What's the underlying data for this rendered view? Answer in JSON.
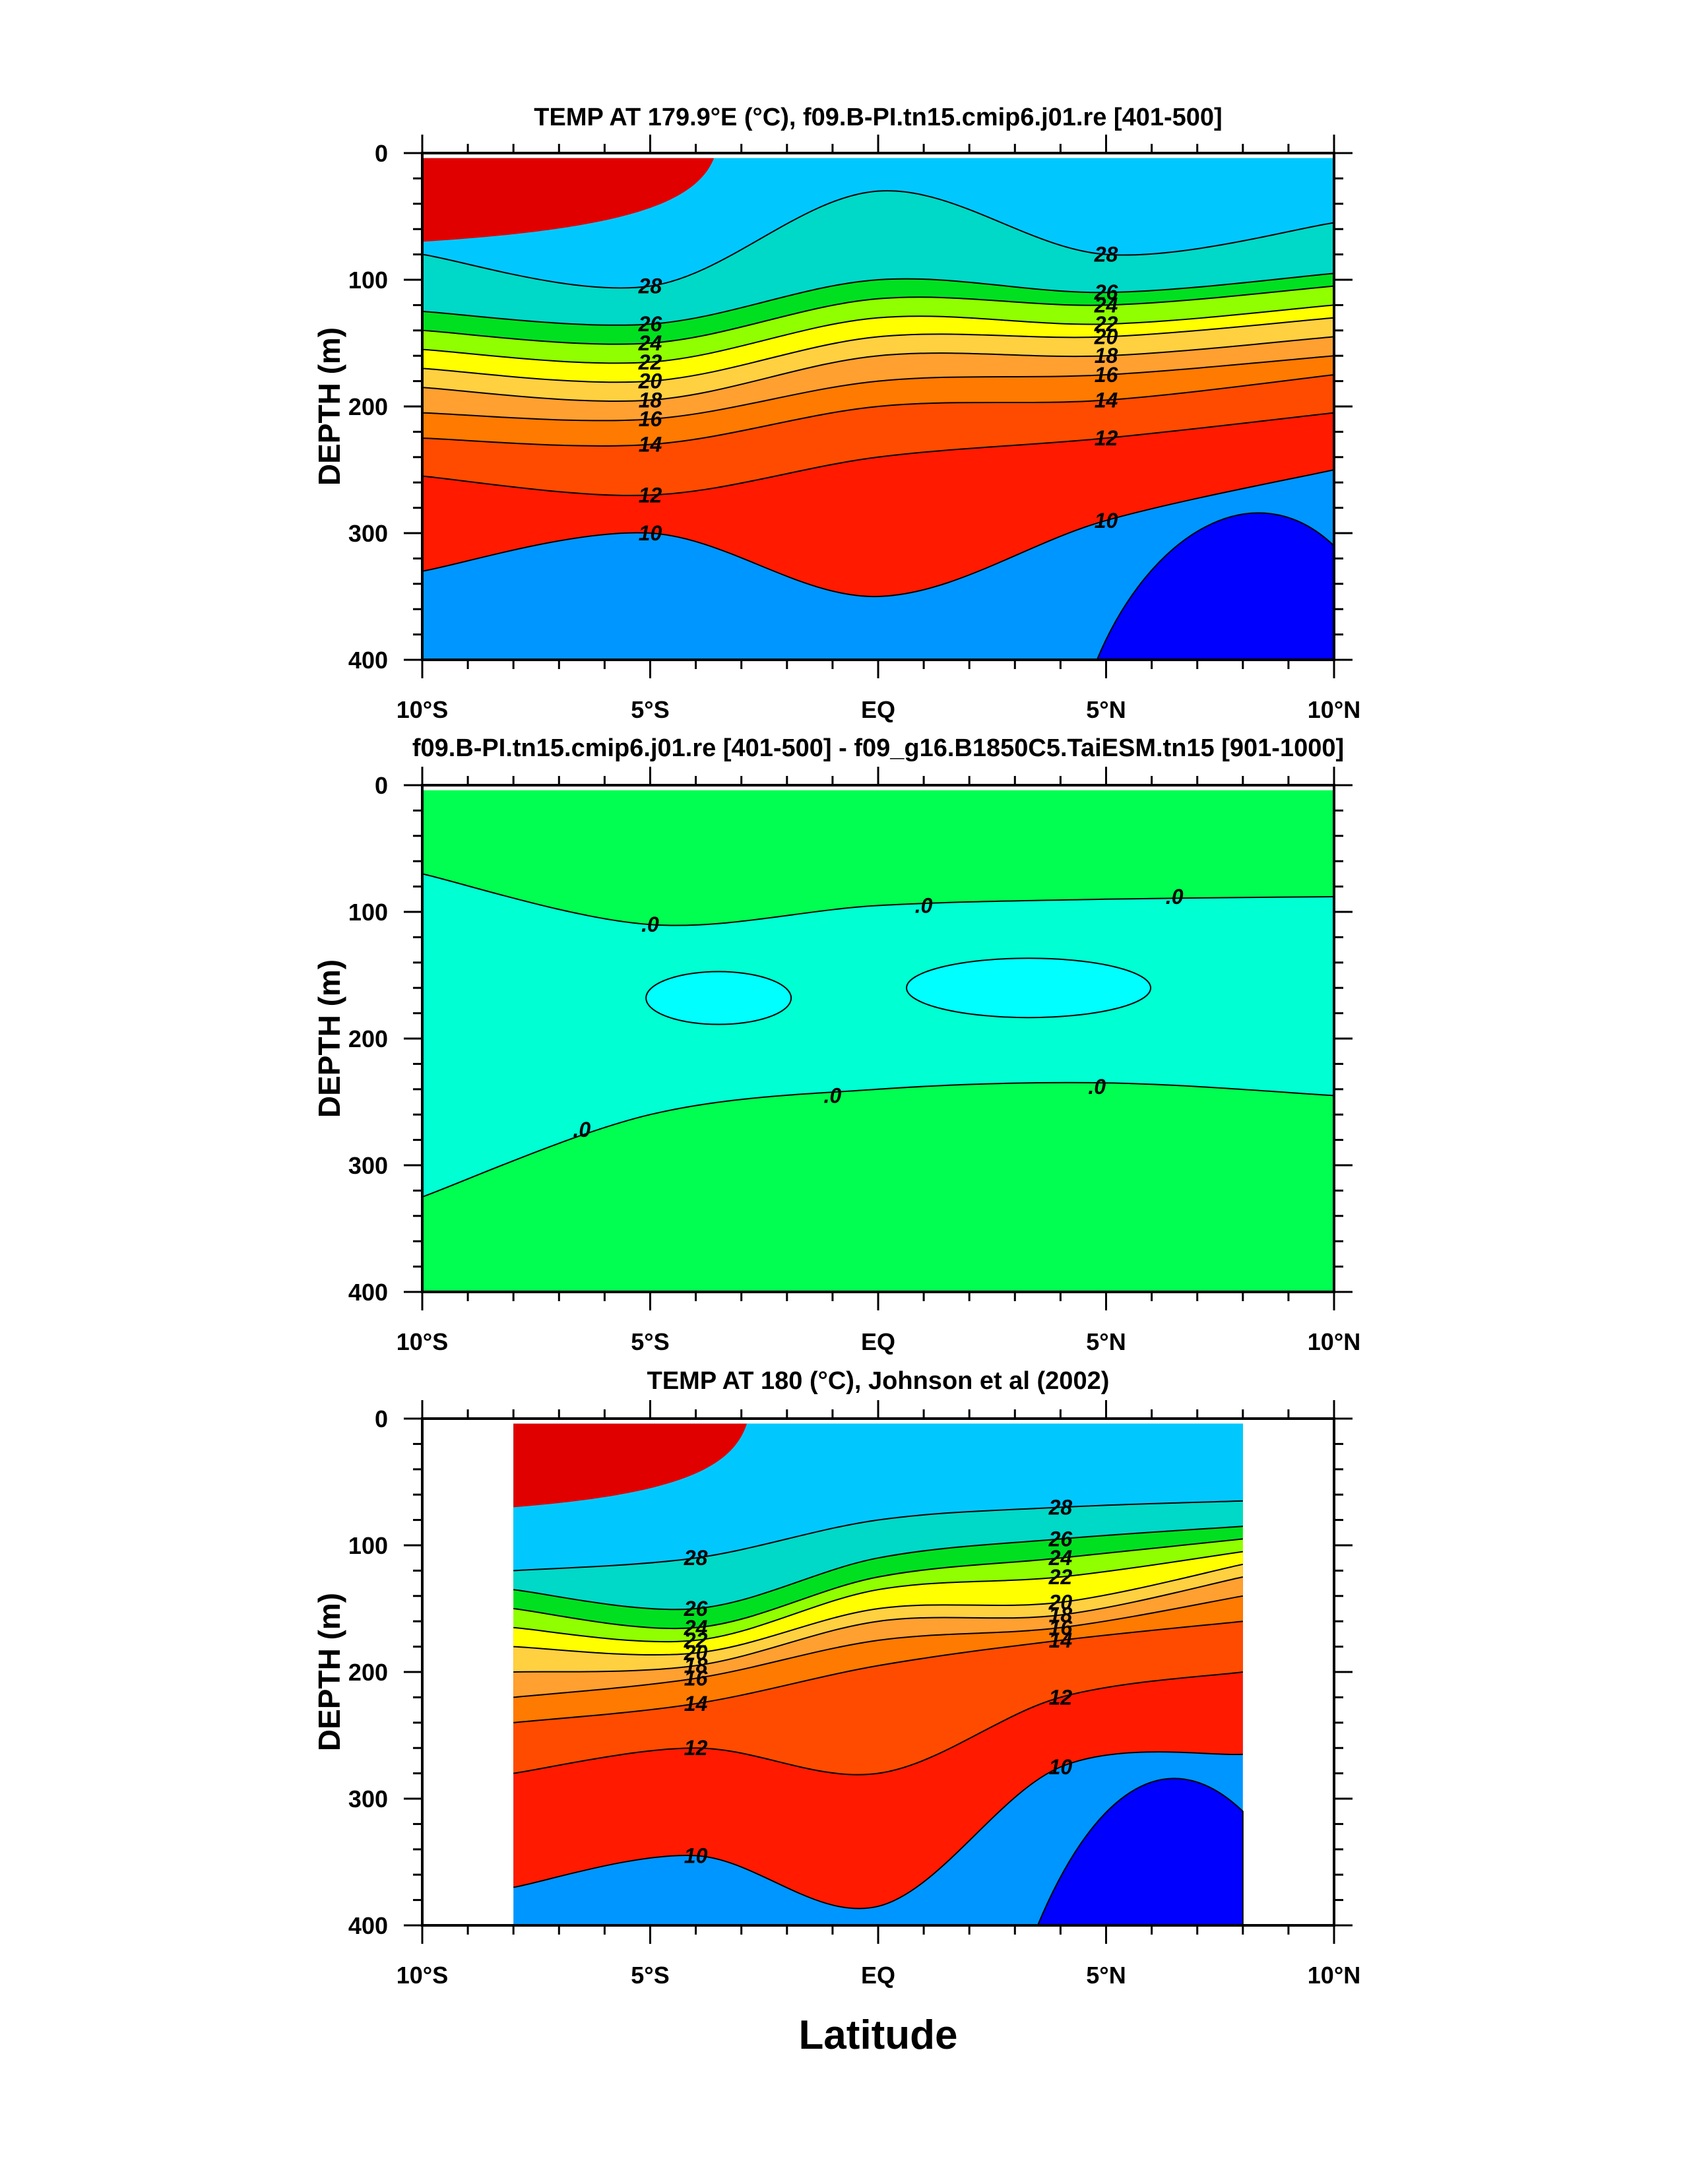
{
  "colors": {
    "c_ge28": "#e10000",
    "c_26_28": "#ff1a00",
    "c_24_26": "#ff4b00",
    "c_22_24": "#ff7a00",
    "c_20_22": "#ffa030",
    "c_18_20": "#ffd040",
    "c_16_18": "#ffff00",
    "c_14_16": "#90ff00",
    "c_12_14": "#00e020",
    "c_10_12": "#00d8c8",
    "c_8_10": "#00c8ff",
    "c_6_8": "#0096ff",
    "c_le6": "#0050ff",
    "c_deep": "#0000ff",
    "diff_zero": "#00ff50",
    "diff_neg": "#00ffd2",
    "diff_neg2": "#00ffff"
  },
  "x_axis": {
    "label": "Latitude",
    "ticks": [
      "10°S",
      "5°S",
      "EQ",
      "5°N",
      "10°N"
    ]
  },
  "chart_data": [
    {
      "type": "heatmap",
      "title": "TEMP AT 179.9°E (°C), f09.B-PI.tn15.cmip6.j01.re [401-500]",
      "xlabel": "",
      "ylabel": "DEPTH (m)",
      "xlim": [
        -10,
        10
      ],
      "ylim": [
        400,
        0
      ],
      "yticks": [
        "0",
        "100",
        "200",
        "300",
        "400"
      ],
      "x": [
        -10,
        -5,
        0,
        5,
        10
      ],
      "contour_levels": [
        10,
        12,
        14,
        16,
        18,
        20,
        22,
        24,
        26,
        28
      ],
      "contour_depths": [
        {
          "level": 28,
          "depth": [
            80,
            105,
            30,
            80,
            55
          ]
        },
        {
          "level": 26,
          "depth": [
            125,
            135,
            100,
            110,
            95
          ]
        },
        {
          "level": 24,
          "depth": [
            140,
            150,
            115,
            120,
            105
          ]
        },
        {
          "level": 22,
          "depth": [
            155,
            165,
            130,
            135,
            120
          ]
        },
        {
          "level": 20,
          "depth": [
            170,
            180,
            145,
            145,
            130
          ]
        },
        {
          "level": 18,
          "depth": [
            185,
            195,
            160,
            160,
            145
          ]
        },
        {
          "level": 16,
          "depth": [
            205,
            210,
            180,
            175,
            160
          ]
        },
        {
          "level": 14,
          "depth": [
            225,
            230,
            200,
            195,
            175
          ]
        },
        {
          "level": 12,
          "depth": [
            255,
            270,
            240,
            225,
            205
          ]
        },
        {
          "level": 10,
          "depth": [
            330,
            300,
            350,
            290,
            250
          ]
        }
      ],
      "contour_labels": [
        "28",
        "26",
        "24",
        "22",
        "20",
        "18",
        "16",
        "14",
        "12",
        "10"
      ]
    },
    {
      "type": "heatmap",
      "title": "f09.B-PI.tn15.cmip6.j01.re [401-500] - f09_g16.B1850C5.TaiESM.tn15 [901-1000]",
      "xlabel": "",
      "ylabel": "DEPTH (m)",
      "xlim": [
        -10,
        10
      ],
      "ylim": [
        400,
        0
      ],
      "yticks": [
        "0",
        "100",
        "200",
        "300",
        "400"
      ],
      "contour_levels": [
        0
      ],
      "contour_labels": [
        ".0"
      ],
      "upper_zero_depth": {
        "x": [
          -10,
          -5,
          0,
          5,
          10
        ],
        "depth": [
          70,
          110,
          95,
          90,
          88
        ]
      },
      "lower_zero_depth": {
        "x": [
          -10,
          -5,
          0,
          5,
          10
        ],
        "depth": [
          325,
          260,
          240,
          235,
          245
        ]
      }
    },
    {
      "type": "heatmap",
      "title": "TEMP AT 180 (°C), Johnson et al (2002)",
      "xlabel": "Latitude",
      "ylabel": "DEPTH (m)",
      "xlim": [
        -10,
        10
      ],
      "data_xrange": [
        -8,
        8
      ],
      "ylim": [
        400,
        0
      ],
      "yticks": [
        "0",
        "100",
        "200",
        "300",
        "400"
      ],
      "x": [
        -8,
        -4,
        0,
        4,
        8
      ],
      "contour_levels": [
        10,
        12,
        14,
        16,
        18,
        20,
        22,
        24,
        26,
        28
      ],
      "contour_depths": [
        {
          "level": 28,
          "depth": [
            120,
            110,
            80,
            70,
            65
          ]
        },
        {
          "level": 26,
          "depth": [
            135,
            150,
            110,
            95,
            85
          ]
        },
        {
          "level": 24,
          "depth": [
            150,
            165,
            125,
            110,
            95
          ]
        },
        {
          "level": 22,
          "depth": [
            165,
            175,
            135,
            125,
            105
          ]
        },
        {
          "level": 20,
          "depth": [
            180,
            185,
            150,
            145,
            115
          ]
        },
        {
          "level": 18,
          "depth": [
            200,
            195,
            160,
            155,
            125
          ]
        },
        {
          "level": 16,
          "depth": [
            220,
            205,
            175,
            165,
            140
          ]
        },
        {
          "level": 14,
          "depth": [
            240,
            225,
            195,
            175,
            160
          ]
        },
        {
          "level": 12,
          "depth": [
            280,
            260,
            280,
            220,
            200
          ]
        },
        {
          "level": 10,
          "depth": [
            370,
            345,
            385,
            275,
            265
          ]
        }
      ],
      "contour_labels": [
        "28",
        "26",
        "24",
        "22",
        "20",
        "18",
        "16",
        "14",
        "12",
        "10"
      ]
    }
  ]
}
